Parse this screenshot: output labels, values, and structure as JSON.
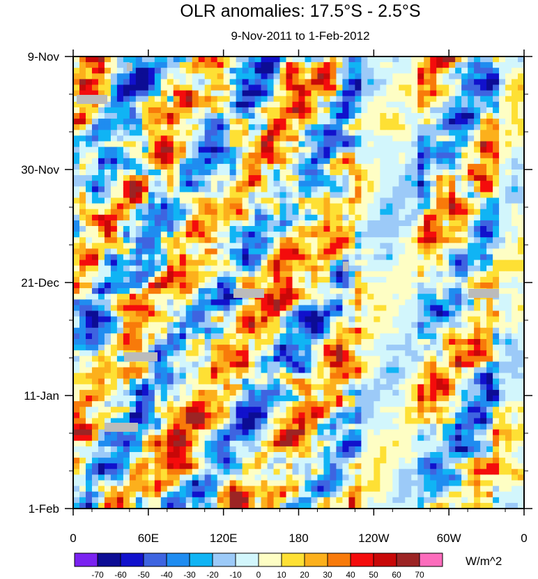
{
  "chart_data": {
    "type": "heatmap",
    "title": "OLR anomalies: 17.5°S - 2.5°S",
    "subtitle": "9-Nov-2011 to 1-Feb-2012",
    "xlabel": "",
    "ylabel": "",
    "x_ticks": [
      "0",
      "60E",
      "120E",
      "180",
      "120W",
      "60W",
      "0"
    ],
    "y_ticks": [
      "9-Nov",
      "30-Nov",
      "21-Dec",
      "11-Jan",
      "1-Feb"
    ],
    "colorbar": {
      "unit": "W/m^2",
      "levels": [
        "-70",
        "-60",
        "-50",
        "-40",
        "-30",
        "-20",
        "-10",
        "0",
        "10",
        "20",
        "30",
        "40",
        "50",
        "60",
        "70"
      ],
      "colors": [
        "#7a22f0",
        "#0c0c94",
        "#1111cc",
        "#3e64e0",
        "#1f8cf0",
        "#10b4f4",
        "#9ccaf8",
        "#d2f6fc",
        "#fefec4",
        "#fee034",
        "#fcb01c",
        "#f87a0a",
        "#f40c0c",
        "#c80808",
        "#9c2424",
        "#fc6cbc"
      ]
    },
    "missing_color": "#bbbbbb"
  }
}
